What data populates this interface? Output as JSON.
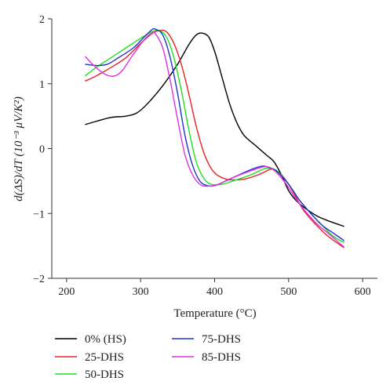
{
  "chart_data": {
    "type": "line",
    "title": "",
    "xlabel": "Temperature (°C)",
    "ylabel": "d(ΔS)/dT (10⁻³ μV/K²)",
    "xlim": [
      180,
      620
    ],
    "ylim": [
      -2,
      2
    ],
    "x_ticks": [
      200,
      300,
      400,
      500,
      600
    ],
    "y_ticks": [
      -2,
      -1,
      0,
      1,
      2
    ],
    "grid": false,
    "legend_placement": "bottom",
    "series": [
      {
        "name": "0% (HS)",
        "color": "#000000",
        "points": [
          [
            225,
            0.37
          ],
          [
            240,
            0.42
          ],
          [
            260,
            0.48
          ],
          [
            280,
            0.5
          ],
          [
            295,
            0.55
          ],
          [
            310,
            0.7
          ],
          [
            330,
            0.97
          ],
          [
            350,
            1.3
          ],
          [
            365,
            1.6
          ],
          [
            375,
            1.75
          ],
          [
            383,
            1.78
          ],
          [
            392,
            1.72
          ],
          [
            400,
            1.5
          ],
          [
            410,
            1.1
          ],
          [
            420,
            0.7
          ],
          [
            430,
            0.4
          ],
          [
            440,
            0.2
          ],
          [
            455,
            0.05
          ],
          [
            470,
            -0.1
          ],
          [
            480,
            -0.2
          ],
          [
            490,
            -0.4
          ],
          [
            500,
            -0.65
          ],
          [
            510,
            -0.8
          ],
          [
            520,
            -0.9
          ],
          [
            530,
            -0.98
          ],
          [
            540,
            -1.05
          ],
          [
            555,
            -1.12
          ],
          [
            575,
            -1.2
          ]
        ]
      },
      {
        "name": "25-DHS",
        "color": "#e8212b",
        "points": [
          [
            225,
            1.04
          ],
          [
            240,
            1.12
          ],
          [
            260,
            1.25
          ],
          [
            280,
            1.4
          ],
          [
            300,
            1.62
          ],
          [
            315,
            1.77
          ],
          [
            325,
            1.82
          ],
          [
            335,
            1.8
          ],
          [
            345,
            1.62
          ],
          [
            355,
            1.3
          ],
          [
            365,
            0.85
          ],
          [
            375,
            0.35
          ],
          [
            385,
            -0.05
          ],
          [
            395,
            -0.3
          ],
          [
            405,
            -0.42
          ],
          [
            420,
            -0.48
          ],
          [
            440,
            -0.47
          ],
          [
            460,
            -0.4
          ],
          [
            475,
            -0.32
          ],
          [
            480,
            -0.33
          ],
          [
            490,
            -0.4
          ],
          [
            500,
            -0.55
          ],
          [
            510,
            -0.75
          ],
          [
            520,
            -0.95
          ],
          [
            535,
            -1.15
          ],
          [
            550,
            -1.32
          ],
          [
            565,
            -1.45
          ],
          [
            575,
            -1.53
          ]
        ]
      },
      {
        "name": "50-DHS",
        "color": "#22dd22",
        "points": [
          [
            225,
            1.12
          ],
          [
            240,
            1.25
          ],
          [
            260,
            1.4
          ],
          [
            280,
            1.55
          ],
          [
            300,
            1.7
          ],
          [
            315,
            1.8
          ],
          [
            325,
            1.82
          ],
          [
            335,
            1.72
          ],
          [
            345,
            1.4
          ],
          [
            355,
            0.9
          ],
          [
            365,
            0.3
          ],
          [
            375,
            -0.2
          ],
          [
            385,
            -0.45
          ],
          [
            395,
            -0.55
          ],
          [
            410,
            -0.55
          ],
          [
            430,
            -0.48
          ],
          [
            450,
            -0.4
          ],
          [
            465,
            -0.32
          ],
          [
            475,
            -0.3
          ],
          [
            485,
            -0.35
          ],
          [
            500,
            -0.55
          ],
          [
            515,
            -0.8
          ],
          [
            530,
            -1.0
          ],
          [
            545,
            -1.18
          ],
          [
            560,
            -1.35
          ],
          [
            575,
            -1.45
          ]
        ]
      },
      {
        "name": "75-DHS",
        "color": "#2233cc",
        "points": [
          [
            225,
            1.3
          ],
          [
            240,
            1.28
          ],
          [
            255,
            1.3
          ],
          [
            270,
            1.4
          ],
          [
            290,
            1.55
          ],
          [
            305,
            1.72
          ],
          [
            315,
            1.83
          ],
          [
            320,
            1.84
          ],
          [
            330,
            1.75
          ],
          [
            340,
            1.4
          ],
          [
            350,
            0.85
          ],
          [
            360,
            0.2
          ],
          [
            370,
            -0.25
          ],
          [
            380,
            -0.5
          ],
          [
            390,
            -0.57
          ],
          [
            400,
            -0.57
          ],
          [
            415,
            -0.5
          ],
          [
            430,
            -0.42
          ],
          [
            450,
            -0.32
          ],
          [
            465,
            -0.27
          ],
          [
            475,
            -0.3
          ],
          [
            485,
            -0.36
          ],
          [
            500,
            -0.55
          ],
          [
            515,
            -0.8
          ],
          [
            530,
            -1.0
          ],
          [
            545,
            -1.18
          ],
          [
            560,
            -1.3
          ],
          [
            575,
            -1.42
          ]
        ]
      },
      {
        "name": "85-DHS",
        "color": "#dd33dd",
        "points": [
          [
            225,
            1.42
          ],
          [
            235,
            1.3
          ],
          [
            245,
            1.2
          ],
          [
            255,
            1.13
          ],
          [
            265,
            1.12
          ],
          [
            275,
            1.2
          ],
          [
            290,
            1.45
          ],
          [
            305,
            1.68
          ],
          [
            315,
            1.78
          ],
          [
            320,
            1.77
          ],
          [
            330,
            1.55
          ],
          [
            340,
            1.05
          ],
          [
            350,
            0.45
          ],
          [
            360,
            -0.1
          ],
          [
            370,
            -0.4
          ],
          [
            380,
            -0.55
          ],
          [
            390,
            -0.58
          ],
          [
            405,
            -0.55
          ],
          [
            420,
            -0.47
          ],
          [
            440,
            -0.38
          ],
          [
            460,
            -0.3
          ],
          [
            470,
            -0.28
          ],
          [
            480,
            -0.33
          ],
          [
            495,
            -0.52
          ],
          [
            510,
            -0.78
          ],
          [
            525,
            -1.0
          ],
          [
            540,
            -1.18
          ],
          [
            555,
            -1.32
          ],
          [
            575,
            -1.52
          ]
        ]
      }
    ]
  }
}
